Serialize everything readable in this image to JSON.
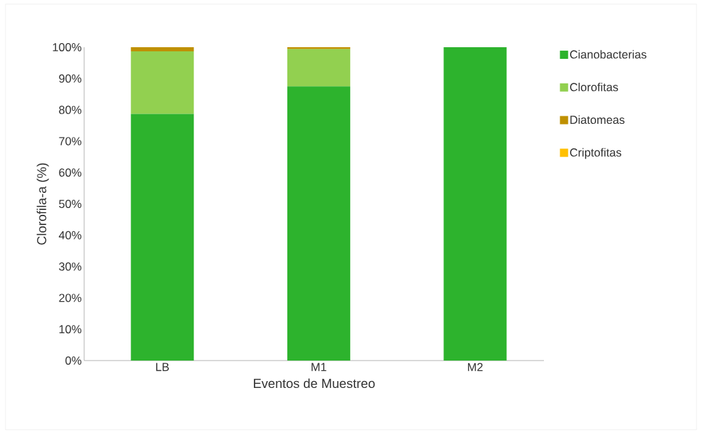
{
  "chart_data": {
    "type": "bar",
    "stacked": true,
    "xlabel": "Eventos de Muestreo",
    "ylabel": "Clorofila-a (%)",
    "categories": [
      "LB",
      "M1",
      "M2"
    ],
    "series": [
      {
        "name": "Cianobacterias",
        "color": "#2db32d",
        "values": [
          78.7,
          87.5,
          100
        ]
      },
      {
        "name": "Clorofitas",
        "color": "#92d050",
        "values": [
          20,
          11.9,
          0
        ]
      },
      {
        "name": "Diatomeas",
        "color": "#bf9000",
        "values": [
          1.3,
          0.6,
          0
        ]
      },
      {
        "name": "Criptofitas",
        "color": "#ffc000",
        "values": [
          0,
          0,
          0
        ]
      }
    ],
    "ylim": [
      0,
      100
    ],
    "yticks": [
      {
        "value": 0,
        "label": "0%"
      },
      {
        "value": 10,
        "label": "10%"
      },
      {
        "value": 20,
        "label": "20%"
      },
      {
        "value": 30,
        "label": "30%"
      },
      {
        "value": 40,
        "label": "40%"
      },
      {
        "value": 50,
        "label": "50%"
      },
      {
        "value": 60,
        "label": "60%"
      },
      {
        "value": 70,
        "label": "70%"
      },
      {
        "value": 80,
        "label": "80%"
      },
      {
        "value": 90,
        "label": "90%"
      },
      {
        "value": 100,
        "label": "100%"
      }
    ],
    "legend": "right"
  }
}
